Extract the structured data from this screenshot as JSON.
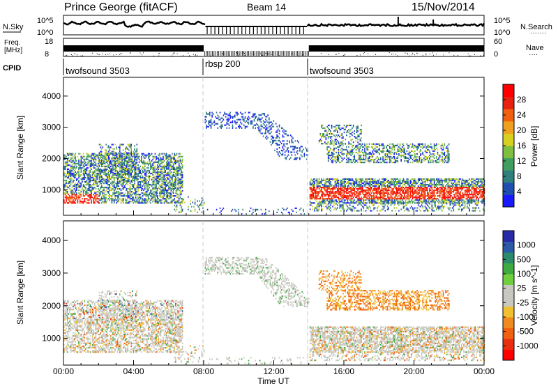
{
  "header": {
    "station": "Prince George (fitACF)",
    "beam": "Beam 14",
    "date": "15/Nov/2014"
  },
  "top_panels": {
    "nsky": {
      "label": "N.Sky",
      "ticks": [
        "10^5",
        "10^0"
      ],
      "right_label": "N.Search",
      "right_ticks": [
        "10^5",
        "10^0"
      ]
    },
    "freq": {
      "label_line1": "Freq.",
      "label_line2": "[MHz]",
      "left_ticks": [
        "18",
        "8"
      ],
      "right_label": "Nave",
      "right_ticks": [
        "60",
        "0"
      ]
    },
    "cpid": {
      "label": "CPID",
      "segments": [
        {
          "start_hour": 0,
          "name": "twofsound 3503"
        },
        {
          "start_hour": 8,
          "name": "rbsp 200"
        },
        {
          "start_hour": 14,
          "name": "twofsound 3503"
        }
      ]
    }
  },
  "chart_data": [
    {
      "type": "heatmap",
      "name": "power",
      "ylabel": "Slant Range [km]",
      "xlabel": "Time UT",
      "x_ticks": [
        "00:00",
        "04:00",
        "08:00",
        "12:00",
        "16:00",
        "20:00",
        "00:00"
      ],
      "xlim_hours": [
        0,
        24
      ],
      "y_ticks": [
        1000,
        2000,
        3000,
        4000
      ],
      "ylim": [
        180,
        4600
      ],
      "colorbar": {
        "label": "Power [dB]",
        "ticks": [
          "4",
          "8",
          "12",
          "16",
          "20",
          "24",
          "28"
        ],
        "colors": [
          "#1a1aff",
          "#1f4fb0",
          "#2f7f7f",
          "#3f9f5f",
          "#7fbf3f",
          "#d8d020",
          "#f0a020",
          "#f06010",
          "#e82010",
          "#ff0000"
        ]
      },
      "regions": [
        {
          "t": [
            0.0,
            6.8
          ],
          "range": [
            400,
            2300
          ],
          "note": "scatter"
        },
        {
          "t": [
            8.0,
            13.5
          ],
          "range": [
            2300,
            3500
          ],
          "note": "scatter"
        },
        {
          "t": [
            14.0,
            24.0
          ],
          "range": [
            400,
            3000
          ],
          "note": "scatter"
        }
      ]
    },
    {
      "type": "heatmap",
      "name": "velocity",
      "ylabel": "Slant Range [km]",
      "xlabel": "Time UT",
      "x_ticks": [
        "00:00",
        "04:00",
        "08:00",
        "12:00",
        "16:00",
        "20:00",
        "00:00"
      ],
      "xlim_hours": [
        0,
        24
      ],
      "y_ticks": [
        1000,
        2000,
        3000,
        4000
      ],
      "ylim": [
        180,
        4600
      ],
      "colorbar": {
        "label": "Velocity [m s^-1]",
        "ticks": [
          "1000",
          "500",
          "100",
          "25",
          "-25",
          "-100",
          "-500",
          "-1000"
        ],
        "colors": [
          "#2a2aa8",
          "#2a5aa8",
          "#2a8a6a",
          "#3faa3f",
          "#6fcf3f",
          "#c8c8c0",
          "#c8c8c0",
          "#f0c030",
          "#f08a20",
          "#f06010",
          "#e83010",
          "#ff0000"
        ]
      }
    }
  ],
  "colors": {
    "ground_scatter": "#c8c8c0",
    "cpid_divider": "#c8c8c8"
  }
}
